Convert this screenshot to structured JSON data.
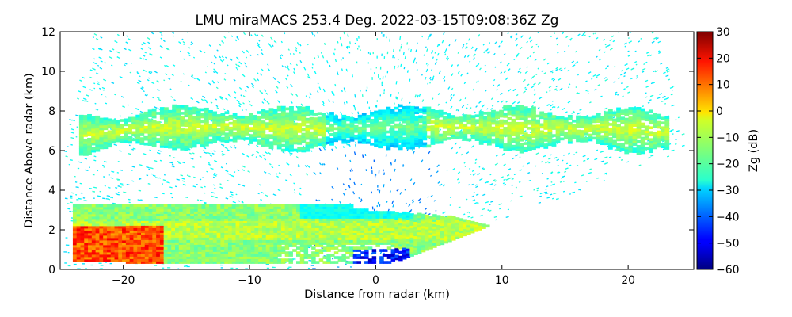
{
  "chart_data": {
    "type": "heatmap",
    "title": "LMU miraMACS 253.4 Deg. 2022-03-15T09:08:36Z  Zg",
    "xlabel": "Distance from radar (km)",
    "ylabel": "Distance Above radar  (km)",
    "xlim": [
      -25,
      25.2
    ],
    "ylim": [
      0,
      12
    ],
    "x_ticks": [
      -20,
      -10,
      0,
      10,
      20
    ],
    "x_tick_labels": [
      "−20",
      "−10",
      "0",
      "10",
      "20"
    ],
    "y_ticks": [
      0,
      2,
      4,
      6,
      8,
      10,
      12
    ],
    "y_tick_labels": [
      "0",
      "2",
      "4",
      "6",
      "8",
      "10",
      "12"
    ],
    "colorbar": {
      "label": "Zg (dB)",
      "range": [
        -60,
        30
      ],
      "ticks": [
        30,
        20,
        10,
        0,
        -10,
        -20,
        -30,
        -40,
        -50,
        -60
      ],
      "tick_labels": [
        "30",
        "20",
        "10",
        "0",
        "−10",
        "−20",
        "−30",
        "−40",
        "−50",
        "−60"
      ],
      "colormap": "jet"
    },
    "grid": false,
    "features": [
      {
        "layer": "upper cloud band",
        "height_km": [
          6.5,
          8.2
        ],
        "x_km": [
          -23,
          23
        ],
        "zg_db": -15
      },
      {
        "layer": "lower precipitation layer",
        "height_km": [
          0,
          3.2
        ],
        "x_km": [
          -24,
          11
        ],
        "zg_db": -10
      },
      {
        "layer": "near-surface strong echo",
        "height_km": [
          0.3,
          2.2
        ],
        "x_km": [
          -24,
          -17
        ],
        "zg_db": 15
      },
      {
        "layer": "sparse noise",
        "height_km": [
          0,
          12
        ],
        "x_km": [
          -24,
          24
        ],
        "zg_db": -25
      }
    ]
  }
}
